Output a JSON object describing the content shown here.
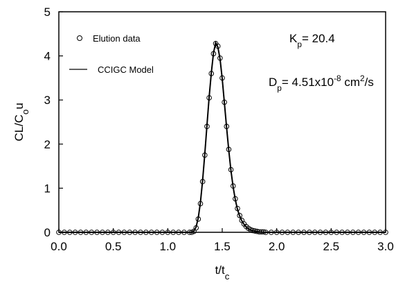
{
  "chart_data": {
    "type": "line",
    "x_label": [
      {
        "text": "t/t"
      },
      {
        "text": "c",
        "shift": "sub"
      }
    ],
    "y_label": [
      {
        "text": "CL/C"
      },
      {
        "text": "o",
        "shift": "sub"
      },
      {
        "text": "u"
      }
    ],
    "annotations": [
      [
        {
          "text": "K"
        },
        {
          "text": "p",
          "shift": "sub"
        },
        {
          "text": "= 20.4"
        }
      ],
      [
        {
          "text": "D"
        },
        {
          "text": "p",
          "shift": "sub"
        },
        {
          "text": "= 4.51x10"
        },
        {
          "text": "-8",
          "shift": "super"
        },
        {
          "text": " cm"
        },
        {
          "text": "2",
          "shift": "super"
        },
        {
          "text": "/s"
        }
      ]
    ],
    "x": [
      0,
      0.05,
      0.1,
      0.15,
      0.2,
      0.25,
      0.3,
      0.35,
      0.4,
      0.45,
      0.5,
      0.55,
      0.6,
      0.65,
      0.7,
      0.75,
      0.8,
      0.85,
      0.9,
      0.95,
      1.0,
      1.05,
      1.1,
      1.15,
      1.2,
      1.22,
      1.24,
      1.26,
      1.28,
      1.3,
      1.32,
      1.34,
      1.36,
      1.38,
      1.4,
      1.42,
      1.44,
      1.46,
      1.48,
      1.5,
      1.52,
      1.54,
      1.56,
      1.58,
      1.6,
      1.62,
      1.64,
      1.66,
      1.68,
      1.7,
      1.72,
      1.74,
      1.76,
      1.78,
      1.8,
      1.82,
      1.84,
      1.86,
      1.88,
      1.9,
      1.95,
      2,
      2.05,
      2.1,
      2.15,
      2.2,
      2.25,
      2.3,
      2.35,
      2.4,
      2.45,
      2.5,
      2.55,
      2.6,
      2.65,
      2.7,
      2.75,
      2.8,
      2.85,
      2.9,
      2.95,
      3
    ],
    "series": [
      {
        "name": "Elution data",
        "mode": "markers",
        "color": "#000000",
        "values": [
          0,
          0,
          0,
          0,
          0,
          0,
          0,
          0,
          0,
          0,
          0,
          0,
          0,
          0,
          0,
          0,
          0,
          0,
          0,
          0,
          0,
          0,
          0,
          0,
          0,
          0,
          0.02,
          0.1,
          0.3,
          0.65,
          1.15,
          1.75,
          2.4,
          3.05,
          3.6,
          4.05,
          4.28,
          4.22,
          3.95,
          3.5,
          2.95,
          2.4,
          1.88,
          1.42,
          1.05,
          0.76,
          0.54,
          0.38,
          0.27,
          0.19,
          0.13,
          0.09,
          0.06,
          0.04,
          0.03,
          0.02,
          0.01,
          0.01,
          0.01,
          0,
          0,
          0,
          0,
          0,
          0,
          0,
          0,
          0,
          0,
          0,
          0,
          0,
          0,
          0,
          0,
          0,
          0,
          0,
          0,
          0,
          0,
          0
        ]
      },
      {
        "name": "CCIGC Model",
        "mode": "line",
        "color": "#000000",
        "values": [
          0,
          0,
          0,
          0,
          0,
          0,
          0,
          0,
          0,
          0,
          0,
          0,
          0,
          0,
          0,
          0,
          0,
          0,
          0,
          0,
          0,
          0,
          0,
          0,
          0,
          0,
          0.03,
          0.12,
          0.33,
          0.68,
          1.18,
          1.78,
          2.43,
          3.07,
          3.62,
          4.07,
          4.3,
          4.2,
          3.93,
          3.48,
          2.93,
          2.38,
          1.86,
          1.4,
          1.03,
          0.74,
          0.52,
          0.37,
          0.26,
          0.18,
          0.12,
          0.08,
          0.05,
          0.04,
          0.03,
          0.02,
          0.01,
          0.01,
          0,
          0,
          0,
          0,
          0,
          0,
          0,
          0,
          0,
          0,
          0,
          0,
          0,
          0,
          0,
          0,
          0,
          0,
          0,
          0,
          0,
          0,
          0,
          0
        ]
      }
    ],
    "xlim": [
      0,
      3
    ],
    "ylim": [
      0,
      5
    ],
    "xticks": [
      {
        "value": 0,
        "label": "0.0"
      },
      {
        "value": 0.5,
        "label": "0.5"
      },
      {
        "value": 1,
        "label": "1.0"
      },
      {
        "value": 1.5,
        "label": "1.5"
      },
      {
        "value": 2,
        "label": "2.0"
      },
      {
        "value": 2.5,
        "label": "2.5"
      },
      {
        "value": 3,
        "label": "3.0"
      }
    ],
    "yticks": [
      0,
      1,
      2,
      3,
      4,
      5
    ],
    "grid": false
  }
}
